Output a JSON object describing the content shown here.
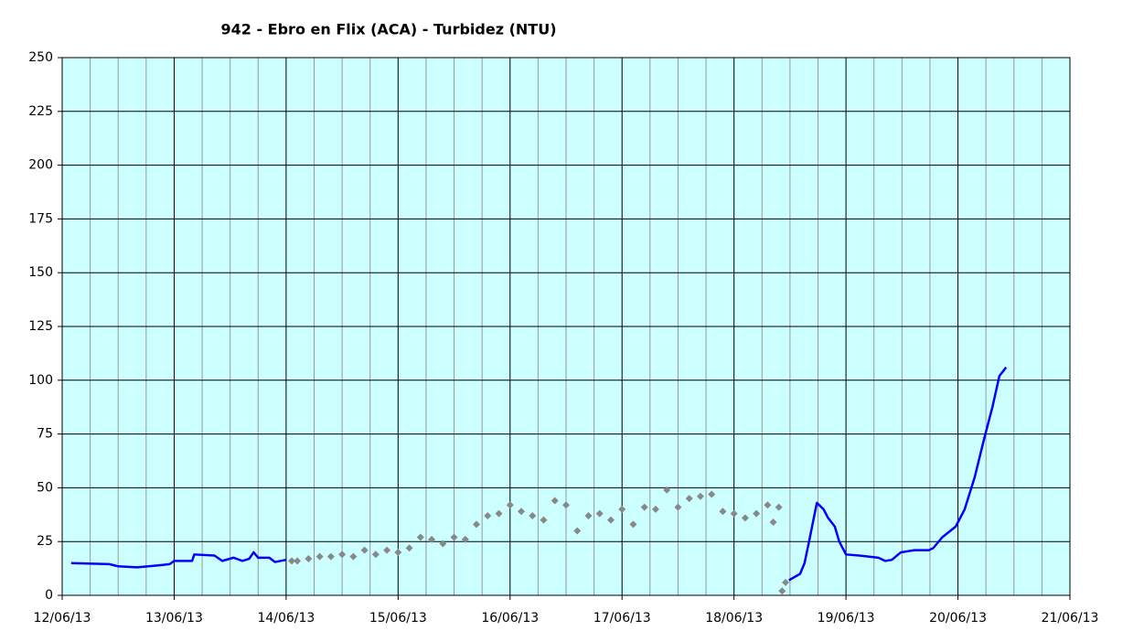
{
  "chart_data": {
    "type": "line",
    "title": "942 - Ebro en Flix (ACA) - Turbidez (NTU)",
    "xlim": [
      0,
      9
    ],
    "xticks": [
      {
        "value": 0,
        "label": "12/06/13"
      },
      {
        "value": 1,
        "label": "13/06/13"
      },
      {
        "value": 2,
        "label": "14/06/13"
      },
      {
        "value": 3,
        "label": "15/06/13"
      },
      {
        "value": 4,
        "label": "16/06/13"
      },
      {
        "value": 5,
        "label": "17/06/13"
      },
      {
        "value": 6,
        "label": "18/06/13"
      },
      {
        "value": 7,
        "label": "19/06/13"
      },
      {
        "value": 8,
        "label": "20/06/13"
      },
      {
        "value": 9,
        "label": "21/06/13"
      }
    ],
    "xminorticks": [
      0.25,
      0.5,
      0.75,
      1.25,
      1.5,
      1.75,
      2.25,
      2.5,
      2.75,
      3.25,
      3.5,
      3.75,
      4.25,
      4.5,
      4.75,
      5.25,
      5.5,
      5.75,
      6.25,
      6.5,
      6.75,
      7.25,
      7.5,
      7.75,
      8.25,
      8.5,
      8.75
    ],
    "ylim": [
      0,
      250
    ],
    "yticks": [
      0,
      25,
      50,
      75,
      100,
      125,
      150,
      175,
      200,
      225,
      250
    ],
    "grid": true,
    "background": "#ccffff",
    "series": [
      {
        "type": "line",
        "color": "#0000ff",
        "x": [
          0.08,
          0.42,
          0.5,
          0.67,
          0.87,
          0.96,
          1.0,
          1.16,
          1.18,
          1.36,
          1.43,
          1.53,
          1.61,
          1.67,
          1.71,
          1.75,
          1.85,
          1.9,
          2.0,
          4.0,
          6.49,
          6.59,
          6.63,
          6.67,
          6.74,
          6.8,
          6.84,
          6.9,
          6.94,
          7.0,
          7.12,
          7.29,
          7.35,
          7.41,
          7.49,
          7.61,
          7.74,
          7.78,
          7.86,
          7.98,
          8.06,
          8.15,
          8.23,
          8.31,
          8.37,
          8.43
        ],
        "values": [
          15,
          14.5,
          13.5,
          13,
          14,
          14.5,
          16,
          16,
          19,
          18.5,
          16,
          17.5,
          16,
          17,
          20,
          17.5,
          17.5,
          15.5,
          16.5,
          null,
          7,
          10,
          15,
          25,
          43,
          40,
          36,
          32,
          25,
          19,
          18.5,
          17.5,
          16,
          16.5,
          20,
          21,
          21,
          22,
          27,
          32,
          40,
          55,
          72,
          88,
          102,
          106
        ]
      },
      {
        "type": "scatter",
        "color": "#888888",
        "x": [
          2.05,
          2.1,
          2.2,
          2.3,
          2.4,
          2.5,
          2.6,
          2.7,
          2.8,
          2.9,
          3.0,
          3.1,
          3.2,
          3.3,
          3.4,
          3.5,
          3.6,
          3.7,
          3.8,
          3.9,
          4.0,
          4.1,
          4.2,
          4.3,
          4.4,
          4.5,
          4.6,
          4.7,
          4.8,
          4.9,
          5.0,
          5.1,
          5.2,
          5.3,
          5.4,
          5.5,
          5.6,
          5.7,
          5.8,
          5.9,
          6.0,
          6.1,
          6.2,
          6.3,
          6.35,
          6.4,
          6.43,
          6.46
        ],
        "values": [
          16,
          16,
          17,
          18,
          18,
          19,
          18,
          21,
          19,
          21,
          20,
          22,
          27,
          26,
          24,
          27,
          26,
          33,
          37,
          38,
          42,
          39,
          37,
          35,
          44,
          42,
          30,
          37,
          38,
          35,
          40,
          33,
          41,
          40,
          49,
          41,
          45,
          46,
          47,
          39,
          38,
          36,
          38,
          42,
          34,
          41,
          2,
          6
        ]
      }
    ]
  }
}
